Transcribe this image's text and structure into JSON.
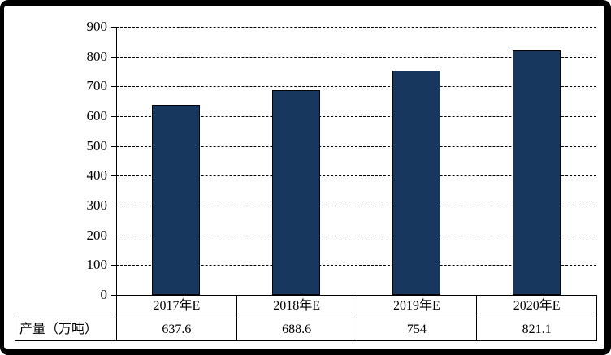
{
  "chart_data": {
    "type": "bar",
    "title": "",
    "series_name": "产量（万吨）",
    "categories": [
      "2017年E",
      "2018年E",
      "2019年E",
      "2020年E"
    ],
    "values": [
      637.6,
      688.6,
      754,
      821.1
    ],
    "value_labels": [
      "637.6",
      "688.6",
      "754",
      "821.1"
    ],
    "ylim": [
      0,
      900
    ],
    "y_tick_step": 100,
    "y_ticks": [
      "900",
      "800",
      "700",
      "600",
      "500",
      "400",
      "300",
      "200",
      "100",
      "0"
    ],
    "grid": "horizontal-dashed",
    "legend_position": "data-table-below",
    "bar_color": "#17375E",
    "bar_border_color": "#000000",
    "frame_color": "#000000",
    "background_color": "#FFFFFF"
  },
  "table": {
    "row_label": "产量（万吨）",
    "columns": [
      "2017年E",
      "2018年E",
      "2019年E",
      "2020年E"
    ],
    "values": [
      "637.6",
      "688.6",
      "754",
      "821.1"
    ]
  }
}
